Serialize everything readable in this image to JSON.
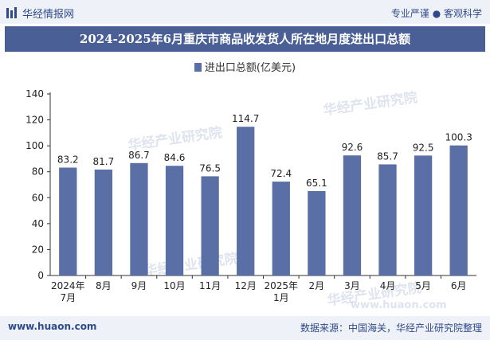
{
  "header": {
    "brand": "华经情报网",
    "tagline": "专业严谨 ● 客观科学"
  },
  "title_bar": {
    "title": "2024-2025年6月重庆市商品收发货人所在地月度进出口总额"
  },
  "watermark": {
    "text": "华经产业研究院",
    "url_text": "www.huaon.com"
  },
  "footer": {
    "url": "www.huaon.com",
    "source": "数据来源：中国海关，华经产业研究院整理"
  },
  "colors": {
    "bar": "#5a6fa5",
    "accent": "#4a5f95"
  },
  "chart_data": {
    "type": "bar",
    "title": "2024-2025年6月重庆市商品收发货人所在地月度进出口总额",
    "categories": [
      [
        "2024年",
        "7月"
      ],
      [
        "8月"
      ],
      [
        "9月"
      ],
      [
        "10月"
      ],
      [
        "11月"
      ],
      [
        "12月"
      ],
      [
        "2025年",
        "1月"
      ],
      [
        "2月"
      ],
      [
        "3月"
      ],
      [
        "4月"
      ],
      [
        "5月"
      ],
      [
        "6月"
      ]
    ],
    "series": [
      {
        "name": "进出口总额(亿美元)",
        "values": [
          83.2,
          81.7,
          86.7,
          84.6,
          76.5,
          114.7,
          72.4,
          65.1,
          92.6,
          85.7,
          92.5,
          100.3
        ]
      }
    ],
    "xlabel": "",
    "ylabel": "",
    "ylim": [
      0,
      140
    ],
    "yticks": [
      0,
      20,
      40,
      60,
      80,
      100,
      120,
      140
    ],
    "grid": false,
    "legend": "top-center"
  }
}
